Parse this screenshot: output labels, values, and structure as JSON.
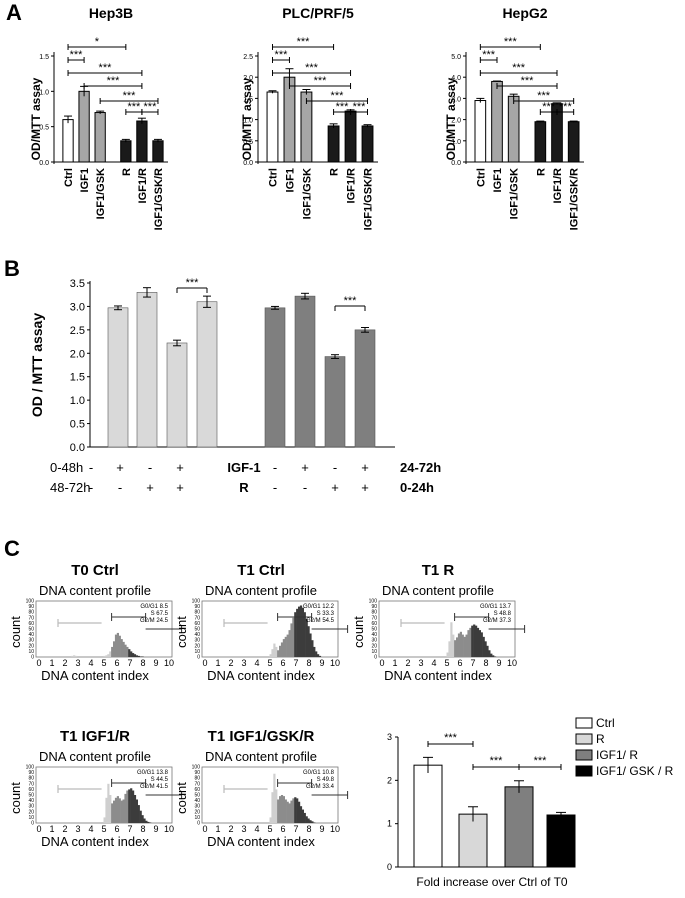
{
  "colors": {
    "white_bar": "#ffffff",
    "gray_bar": "#a6a6a6",
    "black_bar": "#1a1a1a",
    "b_light": "#d9d9d9",
    "b_dark": "#7f7f7f",
    "hist_light": "#cfcfcf",
    "hist_mid": "#8c8c8c",
    "hist_dark": "#3c3c3c"
  },
  "panel_labels": {
    "a": "A",
    "b": "B",
    "c": "C"
  },
  "sig_marks": {
    "triple": "***",
    "single": "*"
  },
  "chart_data": [
    {
      "id": "a-hep3b",
      "type": "bar",
      "title": "Hep3B",
      "ylabel": "OD/MTT assay",
      "categories": [
        "Ctrl",
        "IGF1",
        "IGF1/GSK",
        "R",
        "IGF1/R",
        "IGF1/GSK/R"
      ],
      "values": [
        0.6,
        1.0,
        0.7,
        0.3,
        0.58,
        0.3
      ],
      "errors": [
        0.05,
        0.07,
        0.02,
        0.02,
        0.04,
        0.02
      ],
      "ylim": [
        0,
        1.5
      ],
      "yticks": [
        "0.0",
        "0.5",
        "1.0",
        "1.5"
      ],
      "comparisons": [
        {
          "from": 0,
          "to": 3,
          "label": "*"
        },
        {
          "from": 0,
          "to": 1,
          "label": "***"
        },
        {
          "from": 0,
          "to": 4,
          "label": "***"
        },
        {
          "from": 1,
          "to": 4,
          "label": "***"
        },
        {
          "from": 2,
          "to": 5,
          "label": "***"
        },
        {
          "from": 3,
          "to": 4,
          "label": "***"
        },
        {
          "from": 4,
          "to": 5,
          "label": "***"
        }
      ]
    },
    {
      "id": "a-plc",
      "type": "bar",
      "title": "PLC/PRF/5",
      "ylabel": "OD/MTT assay",
      "categories": [
        "Ctrl",
        "IGF1",
        "IGF1/GSK",
        "R",
        "IGF1/R",
        "IGF1/GSK/R"
      ],
      "values": [
        1.65,
        2.0,
        1.65,
        0.85,
        1.2,
        0.85
      ],
      "errors": [
        0.03,
        0.2,
        0.06,
        0.05,
        0.03,
        0.03
      ],
      "ylim": [
        0,
        2.5
      ],
      "yticks": [
        "0.0",
        "0.5",
        "1.0",
        "1.5",
        "2.0",
        "2.5"
      ],
      "comparisons": [
        {
          "from": 0,
          "to": 3,
          "label": "***"
        },
        {
          "from": 0,
          "to": 1,
          "label": "***"
        },
        {
          "from": 0,
          "to": 4,
          "label": "***"
        },
        {
          "from": 1,
          "to": 4,
          "label": "***"
        },
        {
          "from": 2,
          "to": 5,
          "label": "***"
        },
        {
          "from": 3,
          "to": 4,
          "label": "***"
        },
        {
          "from": 4,
          "to": 5,
          "label": "***"
        }
      ]
    },
    {
      "id": "a-hepg2",
      "type": "bar",
      "title": "HepG2",
      "ylabel": "OD/MTT assay",
      "categories": [
        "Ctrl",
        "IGF1",
        "IGF1/GSK",
        "R",
        "IGF1/R",
        "IGF1/GSK/R"
      ],
      "values": [
        2.9,
        3.8,
        3.1,
        1.9,
        2.75,
        1.9
      ],
      "errors": [
        0.1,
        0.02,
        0.1,
        0.03,
        0.04,
        0.03
      ],
      "ylim": [
        0,
        5.0
      ],
      "yticks": [
        "0.0",
        "1.0",
        "2.0",
        "3.0",
        "4.0",
        "5.0"
      ],
      "comparisons": [
        {
          "from": 0,
          "to": 3,
          "label": "***"
        },
        {
          "from": 0,
          "to": 1,
          "label": "***"
        },
        {
          "from": 0,
          "to": 4,
          "label": "***"
        },
        {
          "from": 1,
          "to": 4,
          "label": "***"
        },
        {
          "from": 2,
          "to": 5,
          "label": "***"
        },
        {
          "from": 3,
          "to": 4,
          "label": "***"
        },
        {
          "from": 4,
          "to": 5,
          "label": "***"
        }
      ]
    },
    {
      "id": "b-time",
      "type": "bar",
      "ylabel": "OD / MTT assay",
      "groups": [
        {
          "name": "IGF-1 0-48h / R 48-72h",
          "values": [
            2.97,
            3.3,
            2.22,
            3.1
          ],
          "errors": [
            0.04,
            0.1,
            0.06,
            0.12
          ],
          "sig": {
            "from": 2,
            "to": 3,
            "label": "***"
          }
        },
        {
          "name": "IGF-1 24-72h / R 0-24h",
          "values": [
            2.97,
            3.22,
            1.93,
            2.5
          ],
          "errors": [
            0.03,
            0.06,
            0.04,
            0.05
          ],
          "sig": {
            "from": 2,
            "to": 3,
            "label": "***"
          }
        }
      ],
      "ylim": [
        0,
        3.5
      ],
      "yticks": [
        "0.0",
        "0.5",
        "1.0",
        "1.5",
        "2.0",
        "2.5",
        "3.0",
        "3.5"
      ],
      "rows": [
        {
          "left": "0-48h",
          "signs": [
            "-",
            "+",
            "-",
            "+",
            "-",
            "+",
            "-",
            "+"
          ],
          "mid": "IGF-1",
          "right": "24-72h"
        },
        {
          "left": "48-72h",
          "signs": [
            "-",
            "-",
            "+",
            "+",
            "-",
            "-",
            "+",
            "+"
          ],
          "mid": "R",
          "right": "0-24h"
        }
      ]
    },
    {
      "id": "c-fold",
      "type": "bar",
      "xlabel": "Fold increase over Ctrl of T0",
      "categories": [
        "Ctrl",
        "R",
        "IGF1/ R",
        "IGF1/ GSK / R"
      ],
      "values": [
        2.35,
        1.22,
        1.85,
        1.2
      ],
      "errors": [
        0.18,
        0.17,
        0.14,
        0.06
      ],
      "ylim": [
        0,
        3
      ],
      "yticks": [
        "0",
        "1",
        "2",
        "3"
      ],
      "comparisons": [
        {
          "from": 0,
          "to": 1,
          "label": "***"
        },
        {
          "from": 1,
          "to": 2,
          "label": "***"
        },
        {
          "from": 2,
          "to": 3,
          "label": "***"
        }
      ],
      "legend": [
        "Ctrl",
        "R",
        "IGF1/ R",
        "IGF1/ GSK / R"
      ]
    }
  ],
  "histograms": {
    "subtitle": "DNA content profile",
    "xlabel": "DNA content index",
    "ylabel": "count",
    "xticks": [
      "0",
      "1",
      "2",
      "3",
      "4",
      "5",
      "6",
      "7",
      "8",
      "9",
      "10"
    ],
    "yticks": [
      "0",
      "10",
      "20",
      "30",
      "40",
      "50",
      "60",
      "70",
      "80",
      "90",
      "100"
    ],
    "panels": [
      {
        "title": "T0 Ctrl",
        "stats": [
          "G0/G1  8.5",
          "S  67.5",
          "G2/M  24.5"
        ],
        "heights": [
          0,
          0,
          0,
          0,
          0,
          0,
          0,
          0,
          2,
          3,
          2,
          0,
          0,
          0,
          0,
          0,
          0,
          0,
          0,
          0,
          0,
          0,
          0,
          0,
          0,
          2,
          3,
          5,
          10,
          18,
          28,
          40,
          43,
          38,
          32,
          27,
          22,
          18,
          14,
          10,
          7,
          5,
          3,
          2,
          1,
          1,
          0,
          0,
          0,
          0,
          0,
          0,
          0,
          0,
          0,
          0,
          0,
          0,
          0,
          0
        ]
      },
      {
        "title": "T1 Ctrl",
        "stats": [
          "G0/G1  12.2",
          "S  33.3",
          "G2/M  54.5"
        ],
        "heights": [
          0,
          0,
          0,
          0,
          0,
          0,
          0,
          0,
          0,
          0,
          0,
          0,
          0,
          0,
          0,
          0,
          0,
          0,
          0,
          0,
          0,
          0,
          0,
          0,
          0,
          5,
          14,
          24,
          18,
          12,
          20,
          26,
          32,
          36,
          40,
          48,
          60,
          70,
          80,
          86,
          90,
          92,
          88,
          80,
          68,
          55,
          42,
          30,
          18,
          10,
          5,
          2,
          0,
          0,
          0,
          0,
          0,
          0,
          0,
          0
        ]
      },
      {
        "title": "T1 R",
        "stats": [
          "G0/G1  13.7",
          "S  48.8",
          "G2/M  37.3"
        ],
        "heights": [
          0,
          0,
          0,
          0,
          0,
          0,
          0,
          0,
          0,
          0,
          0,
          0,
          0,
          0,
          0,
          0,
          0,
          0,
          0,
          0,
          0,
          0,
          0,
          0,
          0,
          8,
          28,
          62,
          40,
          30,
          35,
          42,
          45,
          40,
          36,
          40,
          48,
          52,
          56,
          58,
          56,
          52,
          48,
          44,
          36,
          28,
          20,
          12,
          6,
          3,
          1,
          0,
          0,
          0,
          0,
          0,
          0,
          0,
          0,
          0
        ]
      },
      {
        "title": "T1 IGF1/R",
        "stats": [
          "G0/G1  13.8",
          "S  44.5",
          "G2/M  41.5"
        ],
        "heights": [
          0,
          0,
          0,
          0,
          0,
          0,
          0,
          0,
          0,
          0,
          0,
          0,
          0,
          0,
          0,
          0,
          0,
          0,
          0,
          0,
          0,
          0,
          0,
          0,
          0,
          10,
          45,
          70,
          50,
          35,
          40,
          45,
          48,
          44,
          40,
          42,
          52,
          58,
          60,
          62,
          58,
          50,
          42,
          32,
          22,
          14,
          8,
          4,
          2,
          1,
          0,
          0,
          0,
          0,
          0,
          0,
          0,
          0,
          0,
          0
        ]
      },
      {
        "title": "T1 IGF1/GSK/R",
        "stats": [
          "G0/G1  10.8",
          "S  49.8",
          "G2/M  33.4"
        ],
        "heights": [
          0,
          0,
          0,
          0,
          0,
          0,
          0,
          0,
          0,
          0,
          0,
          0,
          0,
          0,
          0,
          0,
          0,
          0,
          0,
          0,
          0,
          0,
          0,
          0,
          0,
          10,
          55,
          88,
          60,
          42,
          48,
          50,
          48,
          42,
          38,
          35,
          40,
          44,
          46,
          44,
          38,
          30,
          24,
          18,
          12,
          8,
          5,
          3,
          1,
          0,
          0,
          0,
          0,
          0,
          0,
          0,
          0,
          0,
          0,
          0
        ]
      }
    ]
  }
}
